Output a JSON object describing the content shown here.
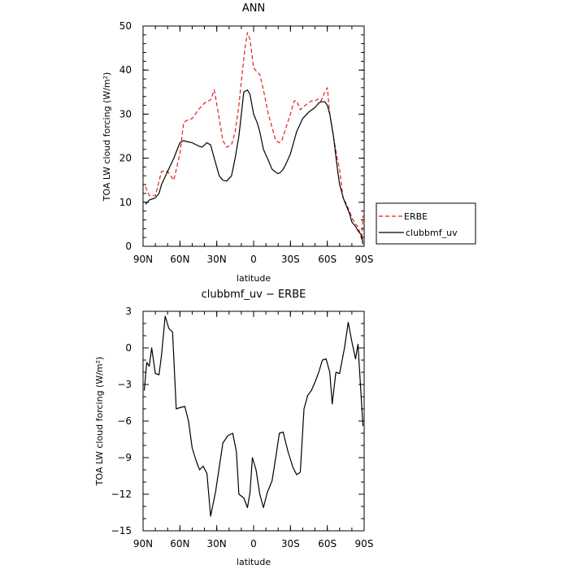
{
  "chart_data": [
    {
      "type": "line",
      "title": "ANN",
      "xlabel": "latitude",
      "ylabel": "TOA LW cloud forcing (W/m²)",
      "xlim": [
        -90,
        90
      ],
      "ylim": [
        0,
        50
      ],
      "x_ticks": [
        -90,
        -60,
        -30,
        0,
        30,
        60,
        90
      ],
      "x_tick_labels": [
        "90N",
        "60N",
        "30N",
        "0",
        "30S",
        "60S",
        "90S"
      ],
      "y_ticks": [
        0,
        10,
        20,
        30,
        40,
        50
      ],
      "y_tick_labels": [
        "0",
        "10",
        "20",
        "30",
        "40",
        "50"
      ],
      "legend_position": "right",
      "series": [
        {
          "name": "ERBE",
          "color": "#dd2222",
          "style": "dashed",
          "x": [
            -88,
            -85,
            -80,
            -75,
            -70,
            -65,
            -60,
            -57,
            -55,
            -50,
            -45,
            -40,
            -37,
            -35,
            -32,
            -28,
            -25,
            -22,
            -18,
            -15,
            -12,
            -9,
            -7,
            -5,
            -3,
            0,
            3,
            5,
            8,
            12,
            15,
            18,
            21,
            23,
            27,
            30,
            33,
            35,
            38,
            42,
            47,
            50,
            53,
            55,
            58,
            60,
            62,
            65,
            68,
            70,
            73,
            75,
            78,
            80,
            83,
            85,
            88,
            89
          ],
          "y": [
            13.5,
            11.5,
            11.5,
            17.0,
            17.0,
            15.0,
            21.0,
            28.0,
            28.5,
            29.0,
            31.0,
            32.5,
            33.0,
            33.2,
            35.5,
            29.0,
            24.0,
            22.5,
            23.0,
            26.0,
            32.0,
            40.0,
            45.0,
            48.5,
            47.0,
            40.5,
            39.5,
            39.0,
            35.5,
            30.0,
            27.0,
            24.0,
            23.5,
            24.0,
            27.5,
            30.0,
            33.0,
            33.0,
            31.0,
            32.0,
            33.0,
            33.0,
            33.5,
            33.0,
            35.0,
            36.0,
            30.0,
            25.0,
            20.0,
            17.5,
            10.5,
            10.0,
            8.0,
            6.5,
            5.0,
            4.5,
            1.5,
            7.0
          ]
        },
        {
          "name": "clubbmf_uv",
          "color": "#000000",
          "style": "solid",
          "x": [
            -88,
            -85,
            -82,
            -80,
            -77,
            -75,
            -70,
            -65,
            -60,
            -57,
            -55,
            -50,
            -45,
            -42,
            -40,
            -38,
            -35,
            -32,
            -28,
            -25,
            -22,
            -18,
            -15,
            -12,
            -10,
            -8,
            -5,
            -3,
            0,
            3,
            5,
            8,
            12,
            15,
            18,
            20,
            22,
            24,
            26,
            30,
            35,
            40,
            45,
            50,
            53,
            55,
            58,
            60,
            62,
            65,
            68,
            70,
            73,
            75,
            78,
            80,
            83,
            85,
            88,
            89
          ],
          "y": [
            9.5,
            10.5,
            10.8,
            11.0,
            12.0,
            14.0,
            17.0,
            20.0,
            23.5,
            24.0,
            23.8,
            23.5,
            22.8,
            22.5,
            23.0,
            23.5,
            23.0,
            20.0,
            16.0,
            15.0,
            14.8,
            16.0,
            20.0,
            25.0,
            30.0,
            35.0,
            35.5,
            34.5,
            30.0,
            28.0,
            26.0,
            22.0,
            19.5,
            17.5,
            16.8,
            16.5,
            16.8,
            17.5,
            18.5,
            21.0,
            26.0,
            29.0,
            30.5,
            31.5,
            32.5,
            32.8,
            32.8,
            32.0,
            30.0,
            25.0,
            18.0,
            14.0,
            11.0,
            9.5,
            7.5,
            5.5,
            4.5,
            3.5,
            2.5,
            0.5
          ]
        }
      ]
    },
    {
      "type": "line",
      "title": "clubbmf_uv − ERBE",
      "xlabel": "latitude",
      "ylabel": "TOA LW cloud forcing (W/m²)",
      "xlim": [
        -90,
        90
      ],
      "ylim": [
        -15,
        3
      ],
      "x_ticks": [
        -90,
        -60,
        -30,
        0,
        30,
        60,
        90
      ],
      "x_tick_labels": [
        "90N",
        "60N",
        "30N",
        "0",
        "30S",
        "60S",
        "90S"
      ],
      "y_ticks": [
        -15,
        -12,
        -9,
        -6,
        -3,
        0,
        3
      ],
      "y_tick_labels": [
        "−15",
        "−12",
        "−9",
        "−6",
        "−3",
        "0",
        "3"
      ],
      "series": [
        {
          "color": "#000000",
          "style": "solid",
          "x": [
            -89,
            -87,
            -85,
            -83,
            -80,
            -77,
            -75,
            -72,
            -69,
            -66,
            -63,
            -60,
            -56,
            -53,
            -50,
            -47,
            -44,
            -41,
            -38,
            -35,
            -31,
            -28,
            -25,
            -21,
            -17,
            -14,
            -12,
            -8,
            -5,
            -3,
            -1,
            2,
            5,
            8,
            11,
            15,
            18,
            21,
            24,
            28,
            32,
            35,
            38,
            41,
            44,
            47,
            50,
            53,
            56,
            59,
            62,
            64,
            67,
            70,
            74,
            77,
            80,
            83,
            85,
            89
          ],
          "y": [
            -3.5,
            -1.2,
            -1.5,
            0.0,
            -2.1,
            -2.2,
            -0.6,
            2.6,
            1.6,
            1.3,
            -5.0,
            -4.9,
            -4.8,
            -6.0,
            -8.2,
            -9.2,
            -10.0,
            -9.7,
            -10.3,
            -13.8,
            -11.8,
            -9.8,
            -7.8,
            -7.2,
            -7.0,
            -8.5,
            -12.0,
            -12.3,
            -13.1,
            -11.9,
            -9.0,
            -10.0,
            -12.0,
            -13.1,
            -11.9,
            -10.9,
            -9.0,
            -7.0,
            -6.9,
            -8.5,
            -9.8,
            -10.4,
            -10.2,
            -5.0,
            -3.9,
            -3.5,
            -2.8,
            -2.0,
            -1.0,
            -0.9,
            -2.0,
            -4.6,
            -2.0,
            -2.1,
            0.0,
            2.1,
            0.5,
            -0.9,
            0.3,
            -6.4
          ]
        }
      ]
    }
  ]
}
